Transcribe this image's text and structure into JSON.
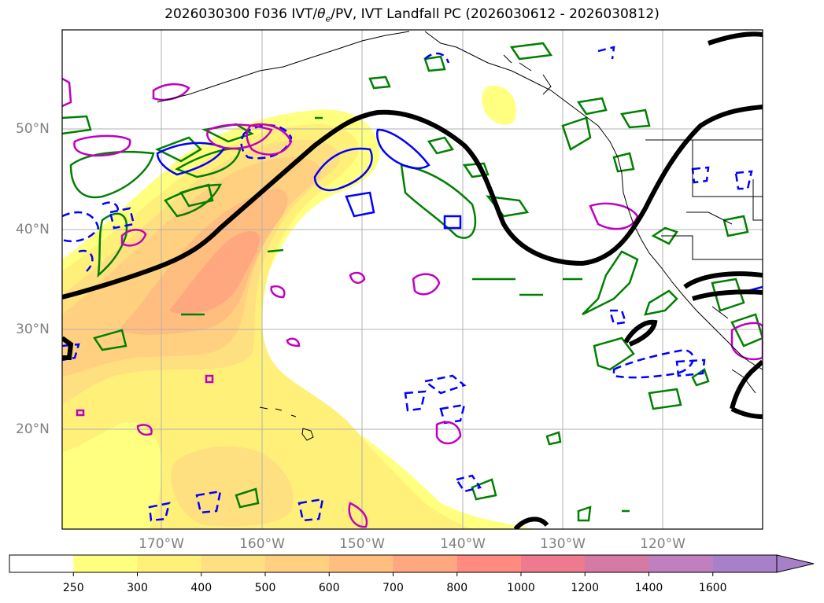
{
  "title": {
    "prefix": "2026030300 F036 IVT/",
    "theta_symbol": "θ",
    "theta_sub": "e",
    "suffix": "/PV, IVT Landfall PC (2026030612 - 2026030812)"
  },
  "axes": {
    "lat_labels": [
      "50°N",
      "40°N",
      "30°N",
      "20°N"
    ],
    "lon_labels": [
      "170°W",
      "160°W",
      "150°W",
      "140°W",
      "130°W",
      "120°W"
    ],
    "grid": true
  },
  "colorbar": {
    "levels": [
      "250",
      "300",
      "400",
      "500",
      "600",
      "700",
      "800",
      "1000",
      "1200",
      "1400",
      "1600"
    ],
    "colors": [
      "#ffffff",
      "#ffff80",
      "#fff07a",
      "#ffe080",
      "#ffd080",
      "#ffbe80",
      "#ffa880",
      "#ff8a80",
      "#ee7a90",
      "#d47aa4",
      "#c080c0",
      "#a880c8"
    ],
    "extend": "max"
  },
  "contour_colors": {
    "pc_line": "#000000",
    "green": "#008000",
    "blue": "#0000ff",
    "magenta": "#c000c0",
    "coast": "#000000"
  },
  "chart_data": {
    "type": "map",
    "projection": "lat-lon",
    "lat_ticks": [
      50,
      40,
      30,
      20
    ],
    "lon_ticks": [
      -170,
      -160,
      -150,
      -140,
      -130,
      -120
    ],
    "ivt_levels": [
      250,
      300,
      400,
      500,
      600,
      700,
      800,
      1000,
      1200,
      1400,
      1600
    ]
  }
}
